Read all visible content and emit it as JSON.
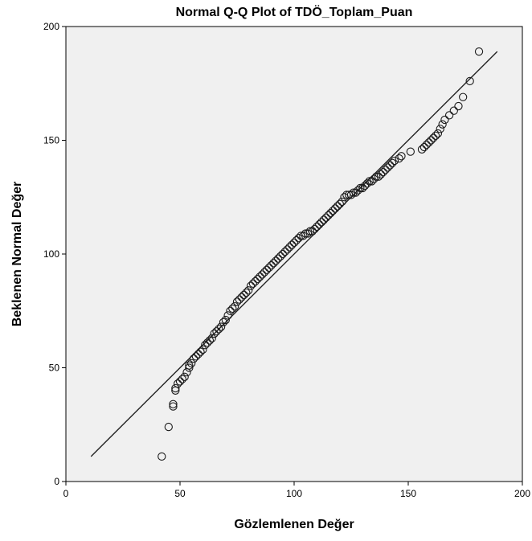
{
  "chart_data": {
    "type": "scatter",
    "title": "Normal Q-Q Plot of TDÖ_Toplam_Puan",
    "xlabel": "Gözlemlenen Değer",
    "ylabel": "Beklenen Normal Değer",
    "xlim": [
      0,
      200
    ],
    "ylim": [
      0,
      200
    ],
    "xticks": [
      0,
      50,
      100,
      150,
      200
    ],
    "yticks": [
      0,
      50,
      100,
      150,
      200
    ],
    "grid": false,
    "reference_line": {
      "x": [
        11,
        189
      ],
      "y": [
        11,
        189
      ]
    },
    "series": [
      {
        "x": [
          42,
          45,
          47,
          47,
          48,
          48,
          49,
          50,
          51,
          52,
          53,
          54,
          54,
          55,
          56,
          57,
          58,
          59,
          60,
          61,
          62,
          63,
          64,
          65,
          66,
          67,
          68,
          69,
          70,
          71,
          72,
          73,
          74,
          75,
          76,
          77,
          78,
          79,
          80,
          81,
          82,
          83,
          84,
          85,
          86,
          87,
          88,
          89,
          90,
          91,
          92,
          93,
          94,
          95,
          96,
          97,
          98,
          99,
          100,
          101,
          102,
          103,
          104,
          105,
          106,
          107,
          108,
          109,
          110,
          111,
          112,
          113,
          114,
          115,
          116,
          117,
          118,
          119,
          120,
          121,
          122,
          123,
          124,
          125,
          126,
          127,
          128,
          129,
          130,
          131,
          132,
          133,
          134,
          135,
          136,
          137,
          138,
          139,
          140,
          141,
          142,
          143,
          144,
          146,
          147,
          151,
          156,
          157,
          158,
          159,
          160,
          161,
          162,
          163,
          164,
          165,
          166,
          168,
          170,
          172,
          174,
          177,
          181
        ],
        "y": [
          11,
          24,
          33,
          34,
          40,
          41,
          43,
          44,
          45,
          46,
          48,
          50,
          51,
          52,
          54,
          55,
          56,
          57,
          58,
          60,
          61,
          62,
          63,
          65,
          66,
          67,
          68,
          70,
          71,
          73,
          75,
          76,
          77,
          79,
          80,
          81,
          82,
          83,
          84,
          86,
          87,
          88,
          89,
          90,
          91,
          92,
          93,
          94,
          95,
          96,
          97,
          98,
          99,
          100,
          101,
          102,
          103,
          104,
          105,
          106,
          107,
          108,
          108,
          109,
          109,
          110,
          110,
          111,
          112,
          113,
          114,
          115,
          116,
          117,
          118,
          119,
          120,
          121,
          122,
          123,
          125,
          126,
          126,
          126,
          127,
          127,
          128,
          129,
          129,
          130,
          131,
          132,
          132,
          133,
          134,
          134,
          135,
          136,
          137,
          138,
          139,
          140,
          141,
          142,
          143,
          145,
          146,
          147,
          148,
          149,
          150,
          151,
          152,
          153,
          155,
          157,
          159,
          161,
          163,
          165,
          169,
          176,
          189
        ]
      }
    ]
  }
}
